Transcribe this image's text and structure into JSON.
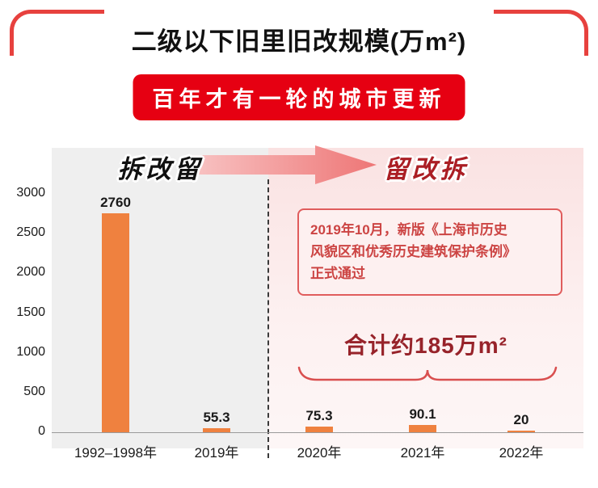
{
  "title": "二级以下旧里旧改规模(万m²)",
  "banner": "百年才有一轮的城市更新",
  "phases": {
    "left": "拆改留",
    "right": "留改拆"
  },
  "annotation": {
    "lines": [
      "2019年10月，新版《上海市历史",
      "风貌区和优秀历史建筑保护条例》",
      "正式通过"
    ]
  },
  "total_label": "合计约185万m²",
  "colors": {
    "frame_red": "#e7413e",
    "banner_red": "#e60012",
    "bar_orange": "#ef813f",
    "note_red": "#cc4443",
    "dark_red": "#97232a"
  },
  "chart_data": {
    "type": "bar",
    "title": "二级以下旧里旧改规模(万m²)",
    "categories": [
      "1992–1998年",
      "2019年",
      "2020年",
      "2021年",
      "2022年"
    ],
    "values": [
      2760,
      55.3,
      75.3,
      90.1,
      20
    ],
    "value_labels": [
      "2760",
      "55.3",
      "75.3",
      "90.1",
      "20"
    ],
    "xlabel": "",
    "ylabel": "万m²",
    "ylim": [
      0,
      3000
    ],
    "yticks": [
      0,
      500,
      1000,
      1500,
      2000,
      2500,
      3000
    ],
    "grid": false,
    "legend": "none",
    "bar_color": "#ef813f",
    "annotations": [
      "2019年10月，新版《上海市历史风貌区和优秀历史建筑保护条例》正式通过",
      "合计约185万m² (2020年–2022年)"
    ]
  }
}
